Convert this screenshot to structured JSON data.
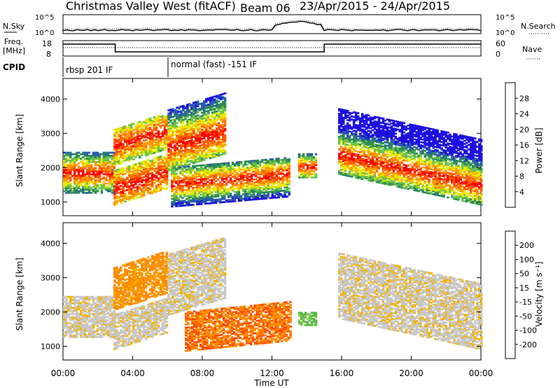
{
  "header": {
    "title": "Christmas Valley West (fitACF)",
    "beam": "Beam 06",
    "date_range": "23/Apr/2015 - 24/Apr/2015"
  },
  "top_panels": {
    "nsky_label": "N.Sky",
    "nsearch_label": "N.Search",
    "noise_tick_top": "10^5",
    "noise_tick_bottom": "10^0",
    "freq_label_line1": "Freq.",
    "freq_label_line2": "[MHz]",
    "freq_ticks": [
      "18",
      "8"
    ],
    "nave_label": "Nave",
    "nave_ticks": [
      "60",
      "0"
    ],
    "cpid_label": "CPID",
    "cpid_segments": [
      "rbsp 201 IF",
      "normal (fast) -151 IF"
    ]
  },
  "chart_data": [
    {
      "type": "heatmap",
      "name": "power",
      "ylabel": "Slant Range [km]",
      "yticks": [
        "4000",
        "3000",
        "2000",
        "1000"
      ],
      "ylim": [
        600,
        4600
      ],
      "xlim_hours": [
        0,
        24
      ],
      "colorbar": {
        "label": "Power [dB]",
        "ticks": [
          "28",
          "24",
          "20",
          "16",
          "12",
          "8",
          "4"
        ],
        "colors": [
          "#1e10e0",
          "#2c5ab0",
          "#2e8b57",
          "#6cc24a",
          "#e8e800",
          "#ff9a00",
          "#ff5a00",
          "#ff0000"
        ]
      },
      "bands": [
        {
          "t0": 0.0,
          "t1": 2.9,
          "r0": 1250,
          "r1": 2450,
          "peak_r0": 1600,
          "peak_r1": 2050
        },
        {
          "t0": 2.9,
          "t1": 6.0,
          "r0": 900,
          "r1": 1900,
          "peak_r0": 1000,
          "peak_r1": 1700
        },
        {
          "t0": 2.9,
          "t1": 6.0,
          "r0": 2050,
          "r1": 3100,
          "peak_r0": 2300,
          "peak_r1": 2900
        },
        {
          "t0": 6.0,
          "t1": 9.3,
          "r0": 1900,
          "r1": 3700,
          "peak_r0": 2200,
          "peak_r1": 2900
        },
        {
          "t0": 6.2,
          "t1": 13.0,
          "r0": 850,
          "r1": 2000,
          "peak_r0": 1300,
          "peak_r1": 1700
        },
        {
          "t0": 13.5,
          "t1": 14.5,
          "r0": 1700,
          "r1": 2400,
          "peak_r0": 1850,
          "peak_r1": 2150
        },
        {
          "t0": 15.8,
          "t1": 24.0,
          "r0": 1400,
          "r1": 3300,
          "peak_r0": 1700,
          "peak_r1": 2200
        }
      ]
    },
    {
      "type": "heatmap",
      "name": "velocity",
      "ylabel": "Slant Range [km]",
      "yticks": [
        "4000",
        "3000",
        "2000",
        "1000"
      ],
      "ylim": [
        600,
        4600
      ],
      "xlim_hours": [
        0,
        24
      ],
      "colorbar": {
        "label": "Velocity [m s⁻¹]",
        "ticks": [
          "200",
          "100",
          "50",
          "15",
          "-15",
          "-50",
          "-100",
          "-200"
        ],
        "colors": [
          "#2030c0",
          "#2e7d6a",
          "#58b94a",
          "#8fd34a",
          "#c8c8c8",
          "#f4b400",
          "#ff8c00",
          "#ff4a00",
          "#ee0000"
        ]
      },
      "bands": [
        {
          "t0": 0.0,
          "t1": 2.9,
          "r0": 1250,
          "r1": 2450,
          "v": -5
        },
        {
          "t0": 2.9,
          "t1": 6.0,
          "r0": 900,
          "r1": 1900,
          "v": -5
        },
        {
          "t0": 2.9,
          "t1": 6.0,
          "r0": 2050,
          "r1": 3300,
          "v": -45
        },
        {
          "t0": 6.0,
          "t1": 9.3,
          "r0": 1900,
          "r1": 3700,
          "v": -5
        },
        {
          "t0": 7.0,
          "t1": 13.0,
          "r0": 850,
          "r1": 2000,
          "v": -70
        },
        {
          "t0": 13.5,
          "t1": 14.5,
          "r0": 1600,
          "r1": 2000,
          "v": 40
        },
        {
          "t0": 15.8,
          "t1": 24.0,
          "r0": 1400,
          "r1": 3300,
          "v": -5
        }
      ]
    }
  ],
  "x_axis": {
    "label": "Time UT",
    "ticks": [
      "00:00",
      "04:00",
      "08:00",
      "12:00",
      "16:00",
      "20:00",
      "00:00"
    ]
  }
}
